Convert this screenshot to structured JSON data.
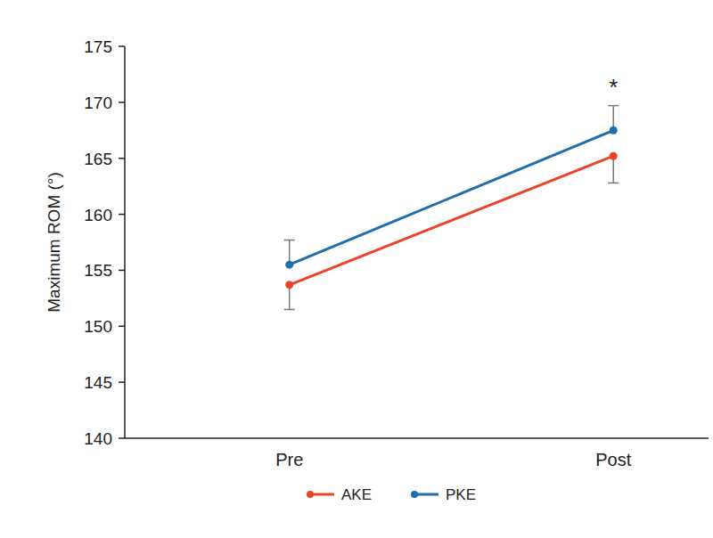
{
  "chart_data": {
    "type": "line",
    "y_label": "Maximum ROM (°)",
    "categories": [
      "Pre",
      "Post"
    ],
    "series": [
      {
        "name": "AKE",
        "color": "#e8462b",
        "marker": "circle",
        "values": [
          153.7,
          165.2
        ],
        "errors": [
          2.2,
          2.4
        ]
      },
      {
        "name": "PKE",
        "color": "#1f6eae",
        "marker": "circle",
        "values": [
          155.5,
          167.5
        ],
        "errors": [
          2.2,
          2.2
        ]
      }
    ],
    "annotations": [
      {
        "text": "*",
        "category": "Post"
      }
    ],
    "ylim": [
      140,
      175
    ],
    "yticks": [
      140,
      145,
      150,
      155,
      160,
      165,
      170,
      175
    ],
    "grid": false,
    "legend": "bottom"
  }
}
